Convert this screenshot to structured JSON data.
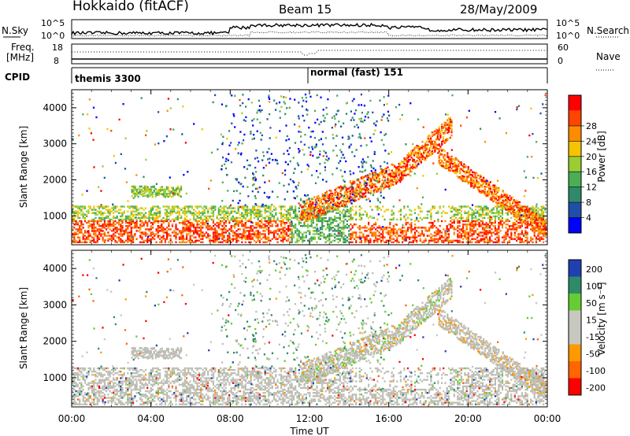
{
  "header": {
    "station": "Hokkaido (fitACF)",
    "beam": "Beam 15",
    "date": "28/May/2009"
  },
  "top_panels": {
    "nsky_label": "N.Sky",
    "nsky_ticks": [
      "10^5",
      "10^0"
    ],
    "nsearch_label": "N.Search",
    "nsearch_ticks": [
      "10^5",
      "10^0"
    ],
    "freq_label_line1": "Freq.",
    "freq_label_line2": "[MHz]",
    "freq_ticks": [
      "18",
      "8"
    ],
    "nave_label": "Nave",
    "nave_ticks": [
      "60",
      "0"
    ],
    "cpid_label": "CPID",
    "cpid_modes": [
      {
        "name": "themis 3300",
        "start_hour": 0
      },
      {
        "name": "normal (fast) 151",
        "start_hour": 12
      }
    ]
  },
  "colors": {
    "power": [
      "#0000ff",
      "#1f4fa8",
      "#2f8a6a",
      "#4aae55",
      "#9acd32",
      "#f5c400",
      "#ff8c00",
      "#ff4500",
      "#ff0000"
    ],
    "velocity": [
      "#2040b0",
      "#2f8a6a",
      "#66cc33",
      "#c8c8c0",
      "#c8c8c0",
      "#ff9900",
      "#ff6600",
      "#ff0000"
    ],
    "ground_scatter": "#bdbdb5"
  },
  "chart_data": [
    {
      "type": "heatmap",
      "name": "power-panel",
      "ylabel": "Slant Range [km]",
      "yticks": [
        "1000",
        "2000",
        "3000",
        "4000"
      ],
      "ylim": [
        200,
        4500
      ],
      "xlim": [
        0,
        24
      ],
      "colorbar_label": "Power [dB]",
      "colorbar_ticks": [
        "4",
        "8",
        "12",
        "16",
        "20",
        "24",
        "28"
      ]
    },
    {
      "type": "heatmap",
      "name": "velocity-panel",
      "ylabel": "Slant Range [km]",
      "yticks": [
        "1000",
        "2000",
        "3000",
        "4000"
      ],
      "ylim": [
        200,
        4500
      ],
      "xlim": [
        0,
        24
      ],
      "colorbar_label": "Velocity [m s⁻¹]",
      "colorbar_ticks": [
        "200",
        "100",
        "50",
        "15",
        "-15",
        "-50",
        "-100",
        "-200"
      ]
    }
  ],
  "xaxis": {
    "ticks": [
      "00:00",
      "04:00",
      "08:00",
      "12:00",
      "16:00",
      "20:00",
      "00:00"
    ],
    "label": "Time UT"
  }
}
